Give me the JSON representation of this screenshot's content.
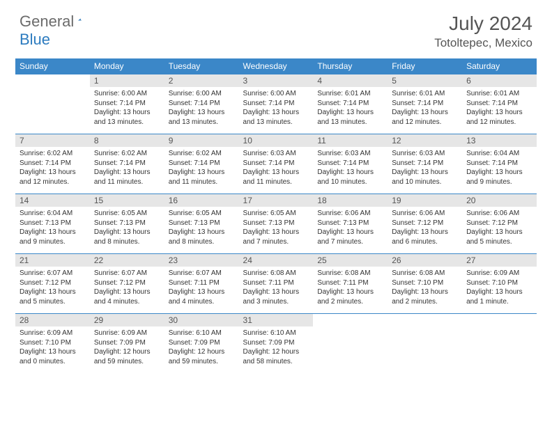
{
  "logo": {
    "general": "General",
    "blue": "Blue"
  },
  "title": "July 2024",
  "location": "Totoltepec, Mexico",
  "header_color": "#3b87c8",
  "daynum_bg": "#e6e6e6",
  "days": [
    "Sunday",
    "Monday",
    "Tuesday",
    "Wednesday",
    "Thursday",
    "Friday",
    "Saturday"
  ],
  "weeks": [
    [
      null,
      {
        "n": "1",
        "sr": "6:00 AM",
        "ss": "7:14 PM",
        "dl": "13 hours and 13 minutes."
      },
      {
        "n": "2",
        "sr": "6:00 AM",
        "ss": "7:14 PM",
        "dl": "13 hours and 13 minutes."
      },
      {
        "n": "3",
        "sr": "6:00 AM",
        "ss": "7:14 PM",
        "dl": "13 hours and 13 minutes."
      },
      {
        "n": "4",
        "sr": "6:01 AM",
        "ss": "7:14 PM",
        "dl": "13 hours and 13 minutes."
      },
      {
        "n": "5",
        "sr": "6:01 AM",
        "ss": "7:14 PM",
        "dl": "13 hours and 12 minutes."
      },
      {
        "n": "6",
        "sr": "6:01 AM",
        "ss": "7:14 PM",
        "dl": "13 hours and 12 minutes."
      }
    ],
    [
      {
        "n": "7",
        "sr": "6:02 AM",
        "ss": "7:14 PM",
        "dl": "13 hours and 12 minutes."
      },
      {
        "n": "8",
        "sr": "6:02 AM",
        "ss": "7:14 PM",
        "dl": "13 hours and 11 minutes."
      },
      {
        "n": "9",
        "sr": "6:02 AM",
        "ss": "7:14 PM",
        "dl": "13 hours and 11 minutes."
      },
      {
        "n": "10",
        "sr": "6:03 AM",
        "ss": "7:14 PM",
        "dl": "13 hours and 11 minutes."
      },
      {
        "n": "11",
        "sr": "6:03 AM",
        "ss": "7:14 PM",
        "dl": "13 hours and 10 minutes."
      },
      {
        "n": "12",
        "sr": "6:03 AM",
        "ss": "7:14 PM",
        "dl": "13 hours and 10 minutes."
      },
      {
        "n": "13",
        "sr": "6:04 AM",
        "ss": "7:14 PM",
        "dl": "13 hours and 9 minutes."
      }
    ],
    [
      {
        "n": "14",
        "sr": "6:04 AM",
        "ss": "7:13 PM",
        "dl": "13 hours and 9 minutes."
      },
      {
        "n": "15",
        "sr": "6:05 AM",
        "ss": "7:13 PM",
        "dl": "13 hours and 8 minutes."
      },
      {
        "n": "16",
        "sr": "6:05 AM",
        "ss": "7:13 PM",
        "dl": "13 hours and 8 minutes."
      },
      {
        "n": "17",
        "sr": "6:05 AM",
        "ss": "7:13 PM",
        "dl": "13 hours and 7 minutes."
      },
      {
        "n": "18",
        "sr": "6:06 AM",
        "ss": "7:13 PM",
        "dl": "13 hours and 7 minutes."
      },
      {
        "n": "19",
        "sr": "6:06 AM",
        "ss": "7:12 PM",
        "dl": "13 hours and 6 minutes."
      },
      {
        "n": "20",
        "sr": "6:06 AM",
        "ss": "7:12 PM",
        "dl": "13 hours and 5 minutes."
      }
    ],
    [
      {
        "n": "21",
        "sr": "6:07 AM",
        "ss": "7:12 PM",
        "dl": "13 hours and 5 minutes."
      },
      {
        "n": "22",
        "sr": "6:07 AM",
        "ss": "7:12 PM",
        "dl": "13 hours and 4 minutes."
      },
      {
        "n": "23",
        "sr": "6:07 AM",
        "ss": "7:11 PM",
        "dl": "13 hours and 4 minutes."
      },
      {
        "n": "24",
        "sr": "6:08 AM",
        "ss": "7:11 PM",
        "dl": "13 hours and 3 minutes."
      },
      {
        "n": "25",
        "sr": "6:08 AM",
        "ss": "7:11 PM",
        "dl": "13 hours and 2 minutes."
      },
      {
        "n": "26",
        "sr": "6:08 AM",
        "ss": "7:10 PM",
        "dl": "13 hours and 2 minutes."
      },
      {
        "n": "27",
        "sr": "6:09 AM",
        "ss": "7:10 PM",
        "dl": "13 hours and 1 minute."
      }
    ],
    [
      {
        "n": "28",
        "sr": "6:09 AM",
        "ss": "7:10 PM",
        "dl": "13 hours and 0 minutes."
      },
      {
        "n": "29",
        "sr": "6:09 AM",
        "ss": "7:09 PM",
        "dl": "12 hours and 59 minutes."
      },
      {
        "n": "30",
        "sr": "6:10 AM",
        "ss": "7:09 PM",
        "dl": "12 hours and 59 minutes."
      },
      {
        "n": "31",
        "sr": "6:10 AM",
        "ss": "7:09 PM",
        "dl": "12 hours and 58 minutes."
      },
      null,
      null,
      null
    ]
  ],
  "labels": {
    "sunrise": "Sunrise:",
    "sunset": "Sunset:",
    "daylight": "Daylight:"
  }
}
